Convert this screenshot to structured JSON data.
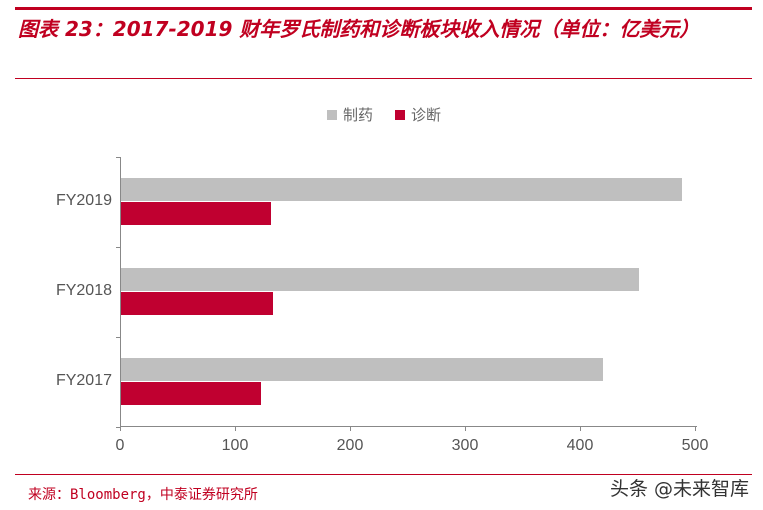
{
  "header": {
    "title": "图表 23：2017-2019 财年罗氏制药和诊断板块收入情况（单位：亿美元）"
  },
  "legend": [
    {
      "label": "制药",
      "color": "#bfbfbf"
    },
    {
      "label": "诊断",
      "color": "#c00030"
    }
  ],
  "footer": {
    "source": "来源：Bloomberg，中泰证券研究所",
    "watermark": "头条 @未来智库"
  },
  "chart_data": {
    "type": "bar",
    "orientation": "horizontal",
    "title": "2017-2019 财年罗氏制药和诊断板块收入情况（单位：亿美元）",
    "categories": [
      "FY2019",
      "FY2018",
      "FY2017"
    ],
    "series": [
      {
        "name": "制药",
        "color": "#bfbfbf",
        "values": [
          488,
          450,
          419
        ]
      },
      {
        "name": "诊断",
        "color": "#c00030",
        "values": [
          130,
          132,
          122
        ]
      }
    ],
    "xlabel": "",
    "ylabel": "",
    "xlim": [
      0,
      500
    ],
    "xticks": [
      "0",
      "100",
      "200",
      "300",
      "400",
      "500"
    ],
    "grid": false,
    "legend_position": "top"
  }
}
